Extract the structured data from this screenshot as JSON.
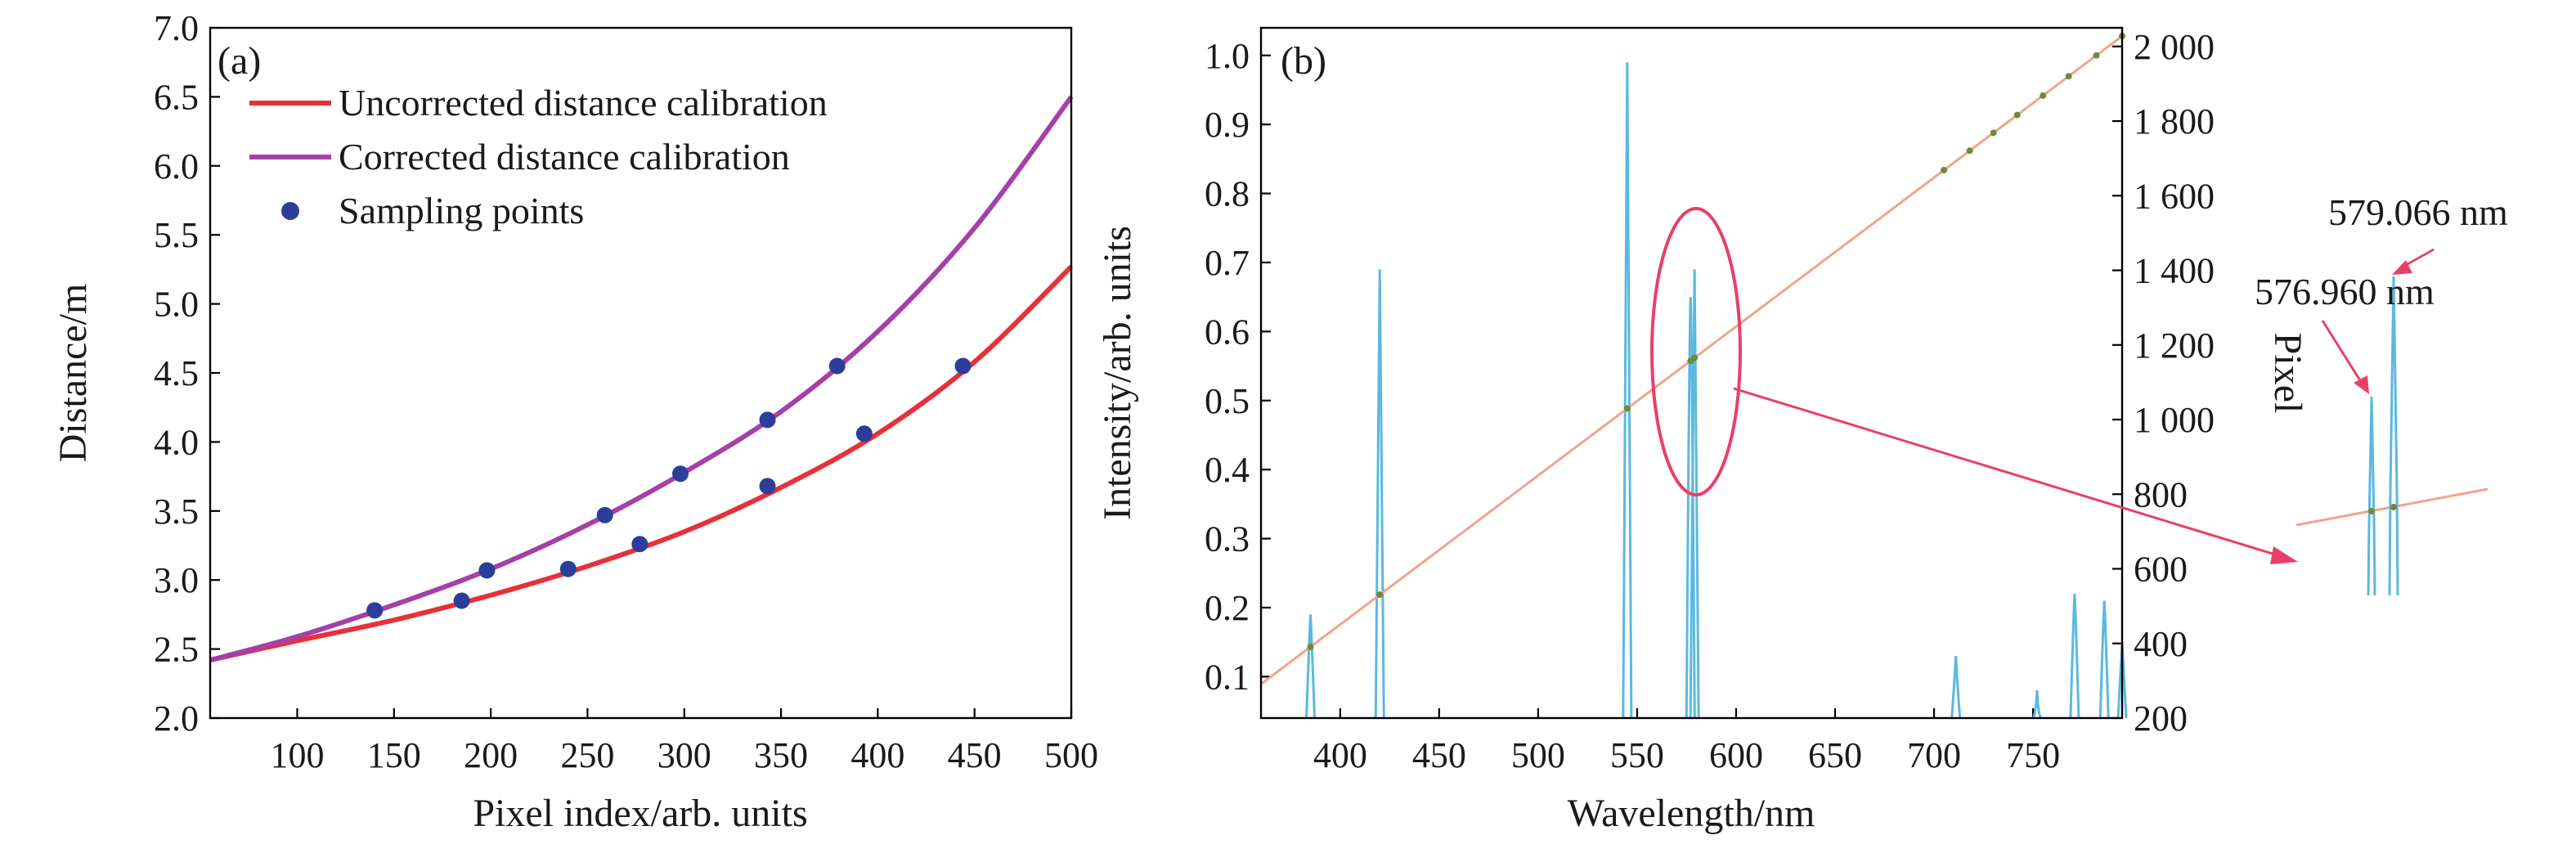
{
  "chart_data": [
    {
      "type": "line",
      "panel_label": "(a)",
      "xlabel": "Pixel index/arb. units",
      "ylabel": "Distance/m",
      "xlim": [
        55,
        500
      ],
      "ylim": [
        2.0,
        7.0
      ],
      "x_ticks": [
        100,
        150,
        200,
        250,
        300,
        350,
        400,
        450,
        500
      ],
      "x_tick_labels": [
        "100",
        "150",
        "200",
        "250",
        "300",
        "350",
        "400",
        "450",
        "500"
      ],
      "y_ticks": [
        2.0,
        2.5,
        3.0,
        3.5,
        4.0,
        4.5,
        5.0,
        5.5,
        6.0,
        6.5,
        7.0
      ],
      "y_tick_labels": [
        "2.0",
        "2.5",
        "3.0",
        "3.5",
        "4.0",
        "4.5",
        "5.0",
        "5.5",
        "6.0",
        "6.5",
        "7.0"
      ],
      "legend_position": "top-left",
      "series": [
        {
          "name": "Uncorrected distance calibration",
          "color": "#e8303a",
          "x": [
            55,
            100,
            150,
            200,
            250,
            300,
            350,
            400,
            450,
            500
          ],
          "y": [
            2.42,
            2.56,
            2.71,
            2.89,
            3.1,
            3.35,
            3.67,
            4.06,
            4.58,
            5.27
          ]
        },
        {
          "name": "Corrected distance calibration",
          "color": "#a540a8",
          "x": [
            55,
            100,
            150,
            200,
            250,
            300,
            350,
            400,
            450,
            500
          ],
          "y": [
            2.42,
            2.59,
            2.82,
            3.08,
            3.4,
            3.78,
            4.22,
            4.8,
            5.55,
            6.5
          ]
        }
      ],
      "points": {
        "name": "Sampling points",
        "color": "#2c3e9a",
        "x": [
          140,
          185,
          198,
          240,
          259,
          277,
          298,
          343,
          343,
          379,
          393,
          444
        ],
        "y": [
          2.78,
          2.85,
          3.07,
          3.08,
          3.47,
          3.26,
          3.77,
          3.68,
          4.16,
          4.55,
          4.06,
          4.55
        ]
      }
    },
    {
      "type": "line",
      "panel_label": "(b)",
      "xlabel": "Wavelength/nm",
      "ylabel": "Intensity/arb. units",
      "y2label": "Pixel",
      "xlim": [
        360,
        795
      ],
      "ylim": [
        0.04,
        1.04
      ],
      "y2lim": [
        200,
        2050
      ],
      "x_ticks": [
        400,
        450,
        500,
        550,
        600,
        650,
        700,
        750
      ],
      "x_tick_labels": [
        "400",
        "450",
        "500",
        "550",
        "600",
        "650",
        "700",
        "750"
      ],
      "y_ticks": [
        0.1,
        0.2,
        0.3,
        0.4,
        0.5,
        0.6,
        0.7,
        0.8,
        0.9,
        1.0
      ],
      "y_tick_labels": [
        "0.1",
        "0.2",
        "0.3",
        "0.4",
        "0.5",
        "0.6",
        "0.7",
        "0.8",
        "0.9",
        "1.0"
      ],
      "y2_ticks": [
        200,
        400,
        600,
        800,
        1000,
        1200,
        1400,
        1600,
        1800,
        2000
      ],
      "y2_tick_labels": [
        "200",
        "400",
        "600",
        "800",
        "1 000",
        "1 200",
        "1 400",
        "1 600",
        "1 800",
        "2 000"
      ],
      "spectrum": {
        "color": "#5bb9de",
        "peaks": [
          {
            "x": 385,
            "y": 0.19
          },
          {
            "x": 420,
            "y": 0.69
          },
          {
            "x": 545,
            "y": 0.99
          },
          {
            "x": 577,
            "y": 0.65
          },
          {
            "x": 579,
            "y": 0.69
          },
          {
            "x": 711,
            "y": 0.13
          },
          {
            "x": 752,
            "y": 0.08
          },
          {
            "x": 771,
            "y": 0.22
          },
          {
            "x": 786,
            "y": 0.21
          },
          {
            "x": 795,
            "y": 0.15
          }
        ]
      },
      "calibration": {
        "color": "#f2a48a",
        "point_color": "#6f8a3a",
        "x": [
          360,
          795
        ],
        "y2": [
          291,
          2028
        ],
        "points_x": [
          385,
          420,
          545,
          577,
          579,
          705,
          718,
          730,
          742,
          755,
          768,
          782,
          795
        ]
      },
      "annotations": [
        "576.960 nm",
        "579.066 nm"
      ]
    }
  ]
}
